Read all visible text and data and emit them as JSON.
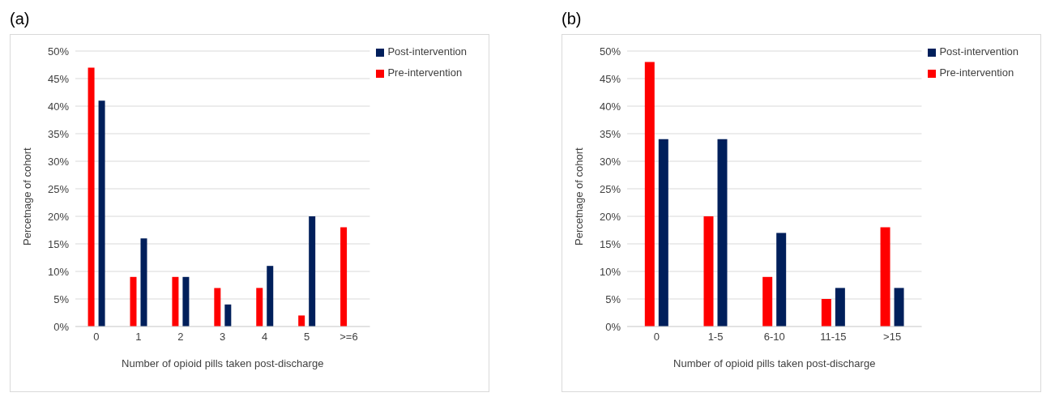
{
  "chart_data": [
    {
      "type": "bar",
      "title": "(a)",
      "xlabel": "Number of opioid  pills taken post-discharge",
      "ylabel": "Percetnage of cohort",
      "categories": [
        "0",
        "1",
        "2",
        "3",
        "4",
        "5",
        ">=6"
      ],
      "series": [
        {
          "name": "Pre-intervention",
          "color": "#ff0000",
          "values": [
            47,
            9,
            9,
            7,
            7,
            2,
            18
          ]
        },
        {
          "name": "Post-intervention",
          "color": "#001f5b",
          "values": [
            41,
            16,
            9,
            4,
            11,
            20,
            0
          ]
        }
      ],
      "ylim": [
        0,
        50
      ],
      "yticks": [
        {
          "value": 0,
          "label": "0%"
        },
        {
          "value": 5,
          "label": "5%"
        },
        {
          "value": 10,
          "label": "10%"
        },
        {
          "value": 15,
          "label": "15%"
        },
        {
          "value": 20,
          "label": "20%"
        },
        {
          "value": 25,
          "label": "25%"
        },
        {
          "value": 30,
          "label": "30%"
        },
        {
          "value": 35,
          "label": "35%"
        },
        {
          "value": 40,
          "label": "40%"
        },
        {
          "value": 45,
          "label": "45%"
        },
        {
          "value": 50,
          "label": "50%"
        }
      ],
      "grid": "y",
      "legend": "top right"
    },
    {
      "type": "bar",
      "title": "(b)",
      "xlabel": "Number of opioid pills taken post-discharge",
      "ylabel": "Percetnage of cohort",
      "categories": [
        "0",
        "1-5",
        "6-10",
        "11-15",
        ">15"
      ],
      "series": [
        {
          "name": "Pre-intervention",
          "color": "#ff0000",
          "values": [
            48,
            20,
            9,
            5,
            18
          ]
        },
        {
          "name": "Post-intervention",
          "color": "#001f5b",
          "values": [
            34,
            34,
            17,
            7,
            7
          ]
        }
      ],
      "ylim": [
        0,
        50
      ],
      "yticks": [
        {
          "value": 0,
          "label": "0%"
        },
        {
          "value": 5,
          "label": "5%"
        },
        {
          "value": 10,
          "label": "10%"
        },
        {
          "value": 15,
          "label": "15%"
        },
        {
          "value": 20,
          "label": "20%"
        },
        {
          "value": 25,
          "label": "25%"
        },
        {
          "value": 30,
          "label": "30%"
        },
        {
          "value": 35,
          "label": "35%"
        },
        {
          "value": 40,
          "label": "40%"
        },
        {
          "value": 45,
          "label": "45%"
        },
        {
          "value": 50,
          "label": "50%"
        }
      ],
      "grid": "y",
      "legend": "top right"
    }
  ]
}
